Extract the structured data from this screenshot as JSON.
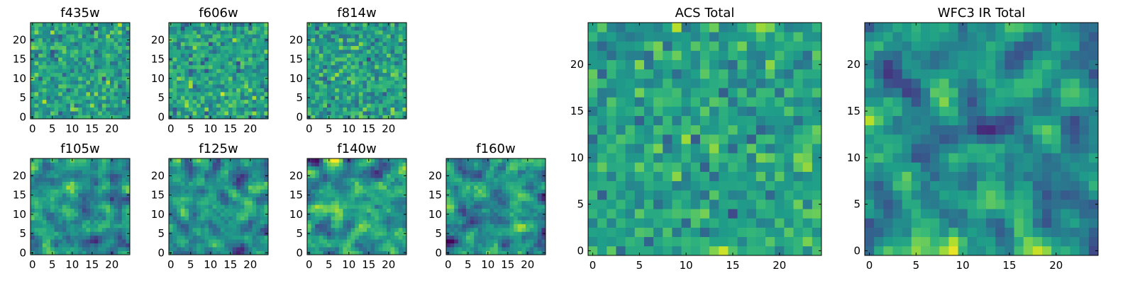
{
  "figure": {
    "background": "#ffffff",
    "colormap": "viridis"
  },
  "chart_data": [
    {
      "type": "heatmap",
      "title": "f435w",
      "grid": "25x25",
      "xticks": [
        "0",
        "5",
        "10",
        "15",
        "20"
      ],
      "yticks": [
        "0",
        "5",
        "10",
        "15",
        "20"
      ],
      "xlim": [
        -0.5,
        24.5
      ],
      "ylim": [
        -0.5,
        24.5
      ],
      "noise_scale": "pixel",
      "vmin": -3,
      "vmax": 3,
      "seed": 11
    },
    {
      "type": "heatmap",
      "title": "f606w",
      "grid": "25x25",
      "xticks": [
        "0",
        "5",
        "10",
        "15",
        "20"
      ],
      "yticks": [
        "0",
        "5",
        "10",
        "15",
        "20"
      ],
      "xlim": [
        -0.5,
        24.5
      ],
      "ylim": [
        -0.5,
        24.5
      ],
      "noise_scale": "pixel",
      "vmin": -3,
      "vmax": 3,
      "seed": 23
    },
    {
      "type": "heatmap",
      "title": "f814w",
      "grid": "25x25",
      "xticks": [
        "0",
        "5",
        "10",
        "15",
        "20"
      ],
      "yticks": [
        "0",
        "5",
        "10",
        "15",
        "20"
      ],
      "xlim": [
        -0.5,
        24.5
      ],
      "ylim": [
        -0.5,
        24.5
      ],
      "noise_scale": "pixel",
      "vmin": -3,
      "vmax": 3,
      "seed": 37
    },
    {
      "type": "heatmap",
      "title": "f105w",
      "grid": "25x25",
      "xticks": [
        "0",
        "5",
        "10",
        "15",
        "20"
      ],
      "yticks": [
        "0",
        "5",
        "10",
        "15",
        "20"
      ],
      "xlim": [
        -0.5,
        24.5
      ],
      "ylim": [
        -0.5,
        24.5
      ],
      "noise_scale": "correlated",
      "vmin": -3,
      "vmax": 3,
      "seed": 41
    },
    {
      "type": "heatmap",
      "title": "f125w",
      "grid": "25x25",
      "xticks": [
        "0",
        "5",
        "10",
        "15",
        "20"
      ],
      "yticks": [
        "0",
        "5",
        "10",
        "15",
        "20"
      ],
      "xlim": [
        -0.5,
        24.5
      ],
      "ylim": [
        -0.5,
        24.5
      ],
      "noise_scale": "correlated",
      "vmin": -3,
      "vmax": 3,
      "seed": 53
    },
    {
      "type": "heatmap",
      "title": "f140w",
      "grid": "25x25",
      "xticks": [
        "0",
        "5",
        "10",
        "15",
        "20"
      ],
      "yticks": [
        "0",
        "5",
        "10",
        "15",
        "20"
      ],
      "xlim": [
        -0.5,
        24.5
      ],
      "ylim": [
        -0.5,
        24.5
      ],
      "noise_scale": "correlated",
      "vmin": -3,
      "vmax": 3,
      "seed": 67
    },
    {
      "type": "heatmap",
      "title": "f160w",
      "grid": "25x25",
      "xticks": [
        "0",
        "5",
        "10",
        "15",
        "20"
      ],
      "yticks": [
        "0",
        "5",
        "10",
        "15",
        "20"
      ],
      "xlim": [
        -0.5,
        24.5
      ],
      "ylim": [
        -0.5,
        24.5
      ],
      "noise_scale": "correlated",
      "vmin": -3,
      "vmax": 3,
      "seed": 79
    },
    {
      "type": "heatmap",
      "title": "ACS Total",
      "grid": "25x25",
      "xticks": [
        "0",
        "5",
        "10",
        "15",
        "20"
      ],
      "yticks": [
        "0",
        "5",
        "10",
        "15",
        "20"
      ],
      "xlim": [
        -0.5,
        24.5
      ],
      "ylim": [
        -0.5,
        24.5
      ],
      "noise_scale": "pixel",
      "vmin": -3,
      "vmax": 3,
      "seed": 97
    },
    {
      "type": "heatmap",
      "title": "WFC3 IR Total",
      "grid": "25x25",
      "xticks": [
        "0",
        "5",
        "10",
        "15",
        "20"
      ],
      "yticks": [
        "0",
        "5",
        "10",
        "15",
        "20"
      ],
      "xlim": [
        -0.5,
        24.5
      ],
      "ylim": [
        -0.5,
        24.5
      ],
      "noise_scale": "correlated",
      "vmin": -3,
      "vmax": 3,
      "seed": 113
    }
  ]
}
